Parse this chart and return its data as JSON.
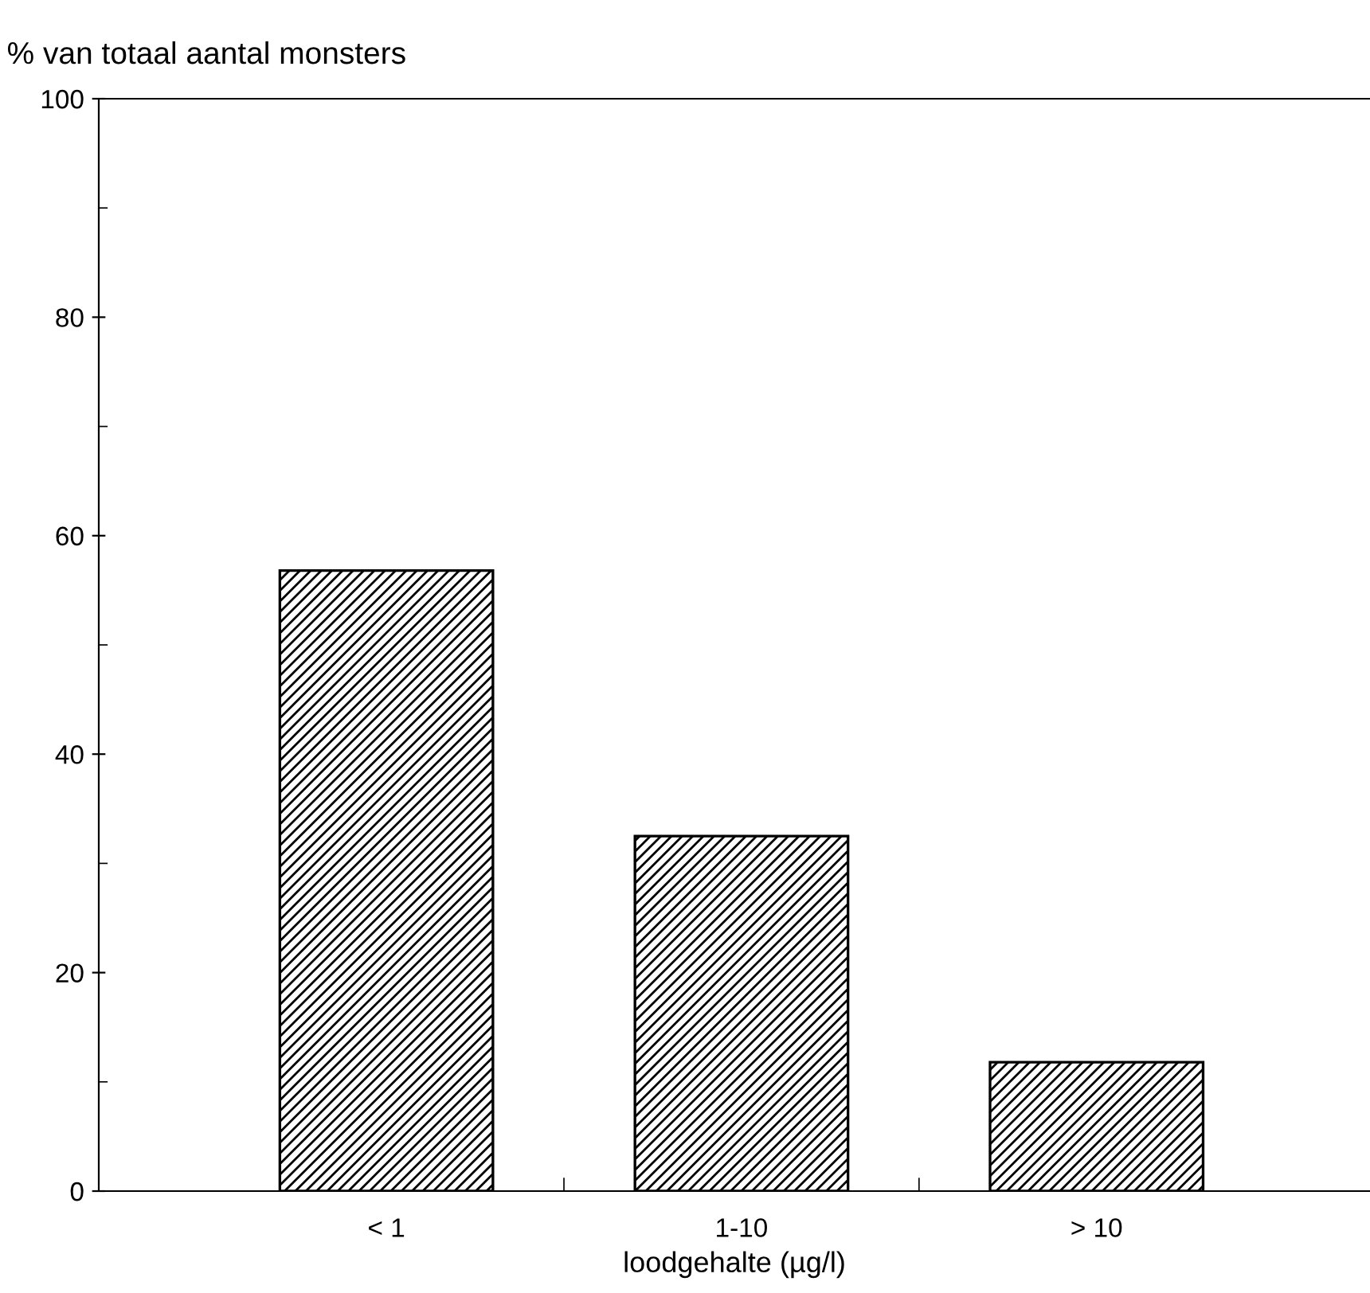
{
  "chart_data": {
    "type": "bar",
    "ylabel": "% van totaal aantal monsters",
    "xlabel": "loodgehalte (µg/l)",
    "categories": [
      "< 1",
      "1-10",
      "> 10"
    ],
    "values": [
      56.8,
      32.5,
      11.8
    ],
    "color": "#000000",
    "ylim": [
      0,
      100
    ],
    "yticks": [
      0,
      20,
      40,
      60,
      80,
      100
    ],
    "grid": false
  }
}
